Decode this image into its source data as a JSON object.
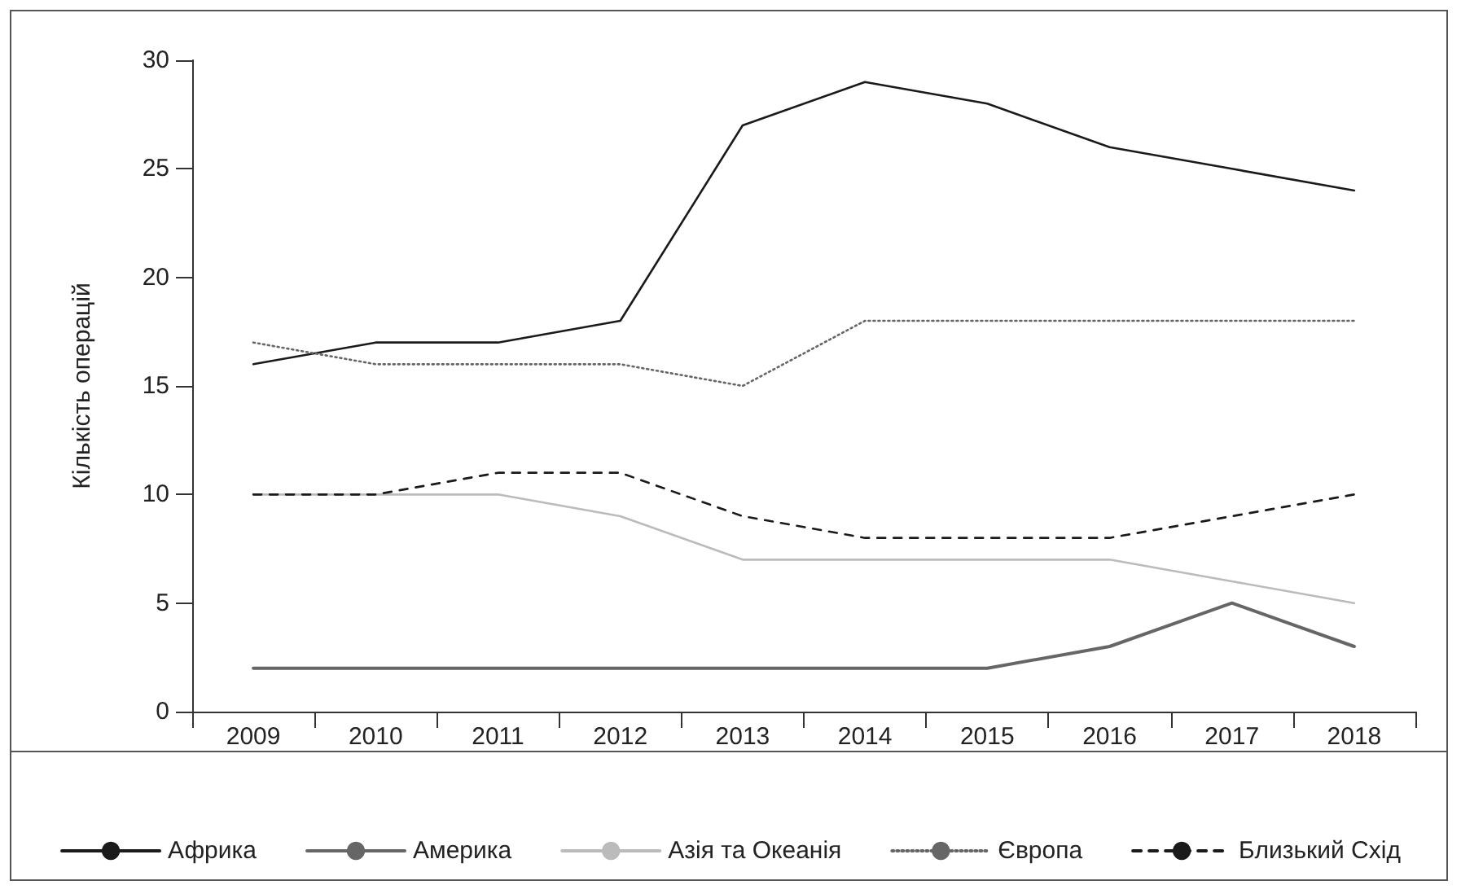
{
  "chart_data": {
    "type": "line",
    "ylabel": "Кількість операцій",
    "categories": [
      "2009",
      "2010",
      "2011",
      "2012",
      "2013",
      "2014",
      "2015",
      "2016",
      "2017",
      "2018"
    ],
    "series": [
      {
        "name": "Африка",
        "color": "#1a1a1a",
        "line_style": "solid",
        "values": [
          16,
          17,
          17,
          18,
          27,
          29,
          28,
          26,
          25,
          24
        ]
      },
      {
        "name": "Америка",
        "color": "#666666",
        "line_style": "solid",
        "values": [
          2,
          2,
          2,
          2,
          2,
          2,
          2,
          3,
          5,
          3
        ]
      },
      {
        "name": "Азія та Океанія",
        "color": "#bbbbbb",
        "line_style": "solid",
        "values": [
          10,
          10,
          10,
          9,
          7,
          7,
          7,
          7,
          6,
          5
        ]
      },
      {
        "name": "Європа",
        "color": "#666666",
        "line_style": "dotted",
        "values": [
          17,
          16,
          16,
          16,
          15,
          18,
          18,
          18,
          18,
          18
        ]
      },
      {
        "name": "Близький Схід",
        "color": "#1a1a1a",
        "line_style": "dashed",
        "values": [
          10,
          10,
          11,
          11,
          9,
          8,
          8,
          8,
          9,
          10
        ]
      }
    ],
    "ylim": [
      0,
      30
    ],
    "yticks": [
      0,
      5,
      10,
      15,
      20,
      25,
      30
    ],
    "grid": false,
    "legend": "bottom",
    "marker": "none"
  }
}
